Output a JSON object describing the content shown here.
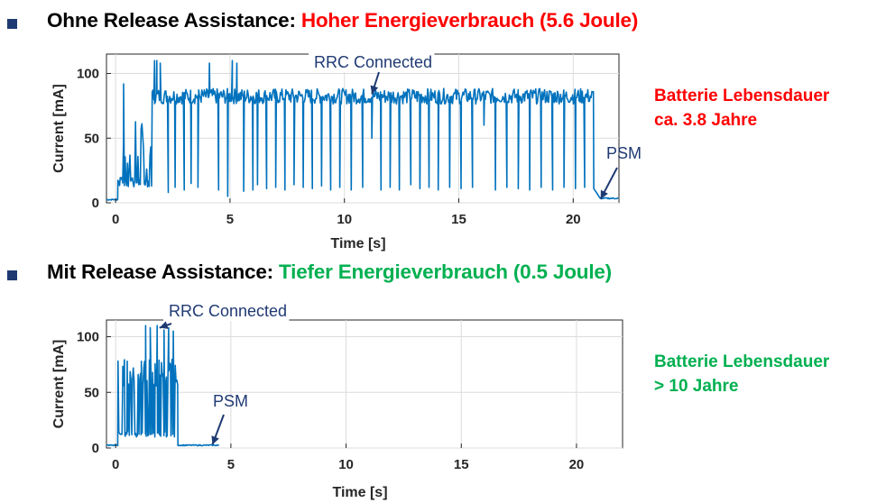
{
  "colors": {
    "accent_red": "#ff0000",
    "accent_green": "#00b050",
    "series": "#0072bd",
    "annotation": "#1f3a73",
    "bullet": "#1f3a73"
  },
  "headings": [
    {
      "label": "Ohne Release Assistance:",
      "result": "Hoher Energieverbrauch (5.6 Joule)"
    },
    {
      "label": "Mit Release Assistance:",
      "result": "Tiefer Energieverbrauch (0.5 Joule)"
    }
  ],
  "notes": [
    {
      "line1": "Batterie Lebensdauer",
      "line2": "ca. 3.8 Jahre"
    },
    {
      "line1": "Batterie Lebensdauer",
      "line2": "> 10 Jahre"
    }
  ],
  "chart_data": [
    {
      "type": "line",
      "xlabel": "Time [s]",
      "ylabel": "Current [mA]",
      "xlim": [
        -0.4,
        22
      ],
      "ylim": [
        0,
        115
      ],
      "xticks": [
        0,
        5,
        10,
        15,
        20
      ],
      "yticks": [
        0,
        50,
        100
      ],
      "grid": true,
      "annotations": [
        {
          "text": "RRC Connected",
          "x": 11.2,
          "y": 84
        },
        {
          "text": "PSM",
          "x": 21.2,
          "y": 3
        }
      ],
      "series": [
        {
          "segments": [
            {
              "x_start": -0.4,
              "x_end": 0.1,
              "base": 2,
              "high": 3,
              "pattern": "flat"
            },
            {
              "x_start": 0.1,
              "x_end": 1.6,
              "base": 12,
              "high": 65,
              "pattern": "spiky"
            },
            {
              "x_start": 1.6,
              "x_end": 20.9,
              "base": 80,
              "high": 90,
              "pattern": "rrc"
            },
            {
              "x_start": 20.9,
              "x_end": 21.2,
              "base": 8,
              "high": 8,
              "pattern": "decay"
            },
            {
              "x_start": 21.2,
              "x_end": 22,
              "base": 3,
              "high": 4,
              "pattern": "flat"
            }
          ],
          "peaks": [
            {
              "x": 0.35,
              "y": 92
            },
            {
              "x": 1.7,
              "y": 110
            },
            {
              "x": 1.8,
              "y": 110
            },
            {
              "x": 1.95,
              "y": 108
            },
            {
              "x": 4.1,
              "y": 108
            },
            {
              "x": 5.1,
              "y": 110
            },
            {
              "x": 5.3,
              "y": 108
            }
          ],
          "dips": [
            {
              "x": 2.3,
              "y": 8
            },
            {
              "x": 2.6,
              "y": 12
            },
            {
              "x": 3.0,
              "y": 10
            },
            {
              "x": 3.3,
              "y": 15
            },
            {
              "x": 3.6,
              "y": 12
            },
            {
              "x": 4.5,
              "y": 10
            },
            {
              "x": 4.9,
              "y": 5
            },
            {
              "x": 5.6,
              "y": 9
            },
            {
              "x": 6.0,
              "y": 10
            },
            {
              "x": 6.2,
              "y": 14
            },
            {
              "x": 6.6,
              "y": 11
            },
            {
              "x": 7.0,
              "y": 12
            },
            {
              "x": 7.4,
              "y": 10
            },
            {
              "x": 7.8,
              "y": 14
            },
            {
              "x": 8.2,
              "y": 12
            },
            {
              "x": 8.6,
              "y": 11
            },
            {
              "x": 9.0,
              "y": 13
            },
            {
              "x": 9.4,
              "y": 10
            },
            {
              "x": 9.8,
              "y": 12
            },
            {
              "x": 10.3,
              "y": 10
            },
            {
              "x": 10.8,
              "y": 12
            },
            {
              "x": 11.2,
              "y": 50
            },
            {
              "x": 11.6,
              "y": 10
            },
            {
              "x": 12.0,
              "y": 12
            },
            {
              "x": 12.4,
              "y": 10
            },
            {
              "x": 12.9,
              "y": 14
            },
            {
              "x": 13.3,
              "y": 11
            },
            {
              "x": 13.7,
              "y": 12
            },
            {
              "x": 14.1,
              "y": 10
            },
            {
              "x": 14.6,
              "y": 12
            },
            {
              "x": 15.1,
              "y": 11
            },
            {
              "x": 15.6,
              "y": 12
            },
            {
              "x": 16.1,
              "y": 60
            },
            {
              "x": 16.6,
              "y": 10
            },
            {
              "x": 17.1,
              "y": 12
            },
            {
              "x": 17.6,
              "y": 11
            },
            {
              "x": 18.1,
              "y": 10
            },
            {
              "x": 18.6,
              "y": 12
            },
            {
              "x": 19.1,
              "y": 10
            },
            {
              "x": 19.6,
              "y": 12
            },
            {
              "x": 20.1,
              "y": 11
            },
            {
              "x": 20.5,
              "y": 12
            }
          ]
        }
      ]
    },
    {
      "type": "line",
      "xlabel": "Time [s]",
      "ylabel": "Current [mA]",
      "xlim": [
        -0.4,
        22
      ],
      "ylim": [
        0,
        115
      ],
      "xticks": [
        0,
        5,
        10,
        15,
        20
      ],
      "yticks": [
        0,
        50,
        100
      ],
      "grid": true,
      "annotations": [
        {
          "text": "RRC Connected",
          "x": 1.9,
          "y": 108
        },
        {
          "text": "PSM",
          "x": 4.2,
          "y": 3
        }
      ],
      "series": [
        {
          "segments": [
            {
              "x_start": -0.4,
              "x_end": 0.1,
              "base": 2,
              "high": 3,
              "pattern": "flat"
            },
            {
              "x_start": 0.1,
              "x_end": 2.7,
              "base": 10,
              "high": 80,
              "pattern": "burst"
            },
            {
              "x_start": 2.7,
              "x_end": 4.5,
              "base": 2,
              "high": 3,
              "pattern": "flat"
            }
          ],
          "peaks": [
            {
              "x": 0.3,
              "y": 52
            },
            {
              "x": 0.5,
              "y": 78
            },
            {
              "x": 1.3,
              "y": 110
            },
            {
              "x": 1.5,
              "y": 108
            },
            {
              "x": 1.8,
              "y": 110
            },
            {
              "x": 2.1,
              "y": 106
            },
            {
              "x": 2.3,
              "y": 108
            },
            {
              "x": 2.5,
              "y": 105
            }
          ],
          "dips": [
            {
              "x": 0.4,
              "y": 12
            },
            {
              "x": 0.7,
              "y": 12
            },
            {
              "x": 0.9,
              "y": 10
            },
            {
              "x": 1.1,
              "y": 12
            },
            {
              "x": 1.4,
              "y": 11
            },
            {
              "x": 1.7,
              "y": 10
            },
            {
              "x": 1.9,
              "y": 12
            },
            {
              "x": 2.2,
              "y": 10
            },
            {
              "x": 2.4,
              "y": 11
            }
          ]
        }
      ]
    }
  ]
}
